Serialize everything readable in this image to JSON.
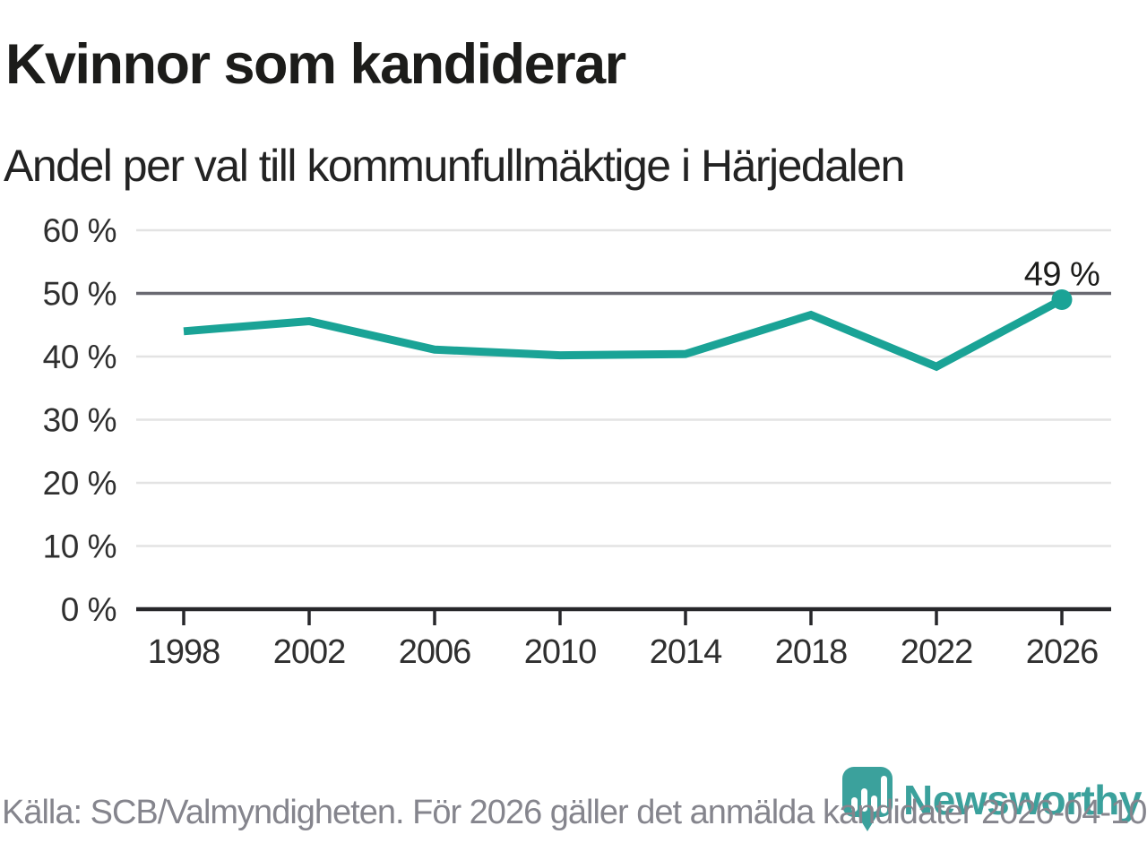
{
  "chart_data": {
    "type": "line",
    "title": "Kvinnor som kandiderar",
    "subtitle": "Andel per val till kommunfullmäktige i Härjedalen",
    "source_note": "Källa: SCB/Valmyndigheten. För 2026 gäller det anmälda kandidater 2026-04-10.",
    "brand": "Newsworthy",
    "categories": [
      "1998",
      "2002",
      "2006",
      "2010",
      "2014",
      "2018",
      "2022",
      "2026"
    ],
    "series": [
      {
        "values": [
          44,
          45.6,
          41.1,
          40.2,
          40.4,
          46.6,
          38.4,
          49
        ]
      }
    ],
    "end_label": "49 %",
    "xlabel": "",
    "ylabel": "",
    "ylim": [
      0,
      60
    ],
    "yticks": [
      {
        "value": 0,
        "label": "0 %"
      },
      {
        "value": 10,
        "label": "10 %"
      },
      {
        "value": 20,
        "label": "20 %"
      },
      {
        "value": 30,
        "label": "30 %"
      },
      {
        "value": 40,
        "label": "40 %"
      },
      {
        "value": 50,
        "label": "50 %"
      },
      {
        "value": 60,
        "label": "60 %"
      }
    ],
    "highlight_gridline": 50,
    "grid": true,
    "legend_position": "none",
    "colors": {
      "line": "#1aa396",
      "grid": "#e3e3e3",
      "grid_highlight": "#696971",
      "axis": "#27272a",
      "tick_text": "#2f2f2f",
      "footer_text": "#85858d",
      "logo": "#3ba19c"
    }
  }
}
